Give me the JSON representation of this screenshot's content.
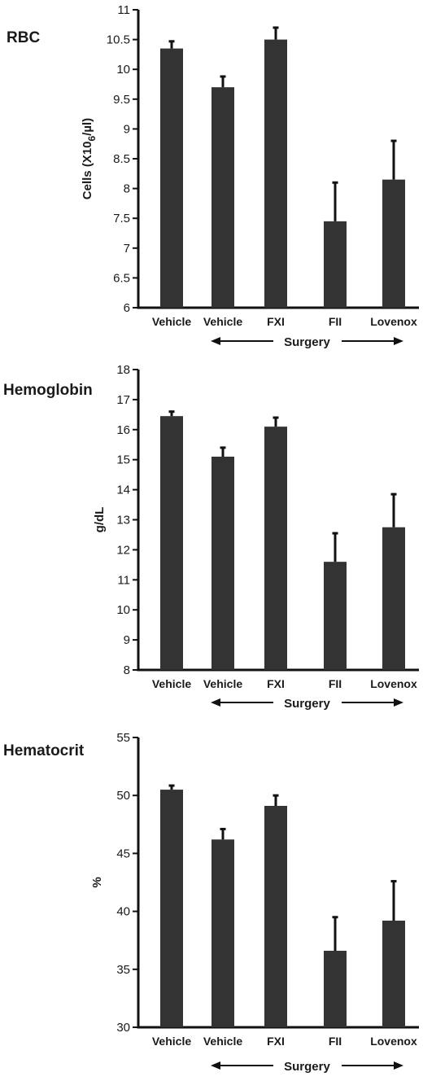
{
  "chart_data": [
    {
      "type": "bar",
      "title": "RBC",
      "ylabel": "Cells (X10",
      "ylabel_subscript": "6",
      "ylabel_suffix": "/µl)",
      "categories": [
        "Vehicle",
        "Vehicle",
        "FXI",
        "FII",
        "Lovenox"
      ],
      "values": [
        10.35,
        9.7,
        10.5,
        7.45,
        8.15
      ],
      "errors": [
        0.12,
        0.18,
        0.2,
        0.65,
        0.65
      ],
      "ylim": [
        6,
        11
      ],
      "yticks": [
        "6",
        "6.5",
        "7",
        "7.5",
        "8",
        "8.5",
        "9",
        "9.5",
        "10",
        "10.5",
        "11"
      ],
      "group_label": "Surgery",
      "bar_color": "#333333"
    },
    {
      "type": "bar",
      "title": "Hemoglobin",
      "ylabel": "g/dL",
      "categories": [
        "Vehicle",
        "Vehicle",
        "FXI",
        "FII",
        "Lovenox"
      ],
      "values": [
        16.45,
        15.1,
        16.1,
        11.6,
        12.75
      ],
      "errors": [
        0.15,
        0.3,
        0.3,
        0.95,
        1.1
      ],
      "ylim": [
        8,
        18
      ],
      "yticks": [
        "8",
        "9",
        "10",
        "11",
        "12",
        "13",
        "14",
        "15",
        "16",
        "17",
        "18"
      ],
      "group_label": "Surgery",
      "bar_color": "#333333"
    },
    {
      "type": "bar",
      "title": "Hematocrit",
      "ylabel": "%",
      "categories": [
        "Vehicle",
        "Vehicle",
        "FXI",
        "FII",
        "Lovenox"
      ],
      "values": [
        50.5,
        46.2,
        49.1,
        36.6,
        39.2
      ],
      "errors": [
        0.35,
        0.9,
        0.9,
        2.9,
        3.4
      ],
      "ylim": [
        30,
        55
      ],
      "yticks": [
        "30",
        "35",
        "40",
        "45",
        "50",
        "55"
      ],
      "group_label": "Surgery",
      "bar_color": "#333333"
    }
  ]
}
